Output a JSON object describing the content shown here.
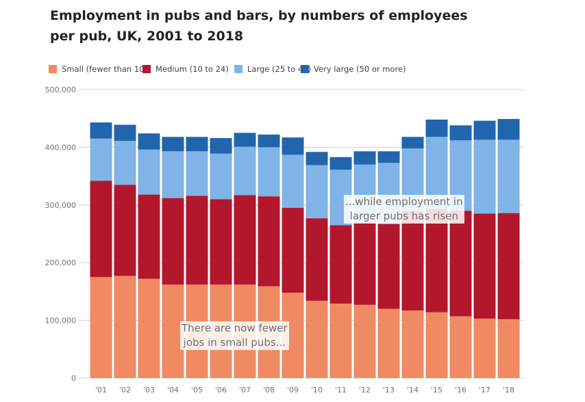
{
  "chart_data": {
    "type": "bar",
    "stacked": true,
    "title": "Employment in pubs and bars, by numbers of employees per pub, UK, 2001 to 2018",
    "xlabel": "",
    "ylabel": "",
    "ylim": [
      0,
      500000
    ],
    "yticks": [
      0,
      100000,
      200000,
      300000,
      400000,
      500000
    ],
    "ytick_labels": [
      "0",
      "100,000",
      "200,000",
      "300,000",
      "400,000",
      "500,000"
    ],
    "grid": true,
    "legend_position": "top-left",
    "categories": [
      "'01",
      "'02",
      "'03",
      "'04",
      "'05",
      "'06",
      "'07",
      "'08",
      "'09",
      "'10",
      "'11",
      "'12",
      "'13",
      "'14",
      "'15",
      "'16",
      "'17",
      "'18"
    ],
    "series": [
      {
        "name": "Small (fewer than 10)",
        "color": "#f08a63",
        "values": [
          175000,
          177000,
          172000,
          162000,
          162000,
          162000,
          162000,
          159000,
          148000,
          134000,
          129000,
          127000,
          120000,
          117000,
          114000,
          107000,
          103000,
          102000
        ]
      },
      {
        "name": "Medium (10 to 24)",
        "color": "#b3172c",
        "values": [
          167000,
          158000,
          146000,
          150000,
          154000,
          148000,
          155000,
          156000,
          147000,
          143000,
          136000,
          143000,
          147000,
          172000,
          179000,
          183000,
          182000,
          184000
        ]
      },
      {
        "name": "Large (25 to 49)",
        "color": "#80b3e6",
        "values": [
          73000,
          76000,
          78000,
          81000,
          77000,
          79000,
          84000,
          85000,
          92000,
          92000,
          96000,
          100000,
          106000,
          109000,
          125000,
          122000,
          128000,
          127000
        ]
      },
      {
        "name": "Very large (50 or more)",
        "color": "#2166ad",
        "values": [
          28000,
          28000,
          28000,
          25000,
          25000,
          27000,
          24000,
          22000,
          30000,
          23000,
          22000,
          23000,
          20000,
          20000,
          30000,
          26000,
          33000,
          36000
        ]
      }
    ],
    "annotations": [
      {
        "text_lines": [
          "There are now fewer",
          "jobs in small pubs..."
        ]
      },
      {
        "text_lines": [
          "...while employment in",
          "larger pubs has risen"
        ]
      }
    ]
  }
}
